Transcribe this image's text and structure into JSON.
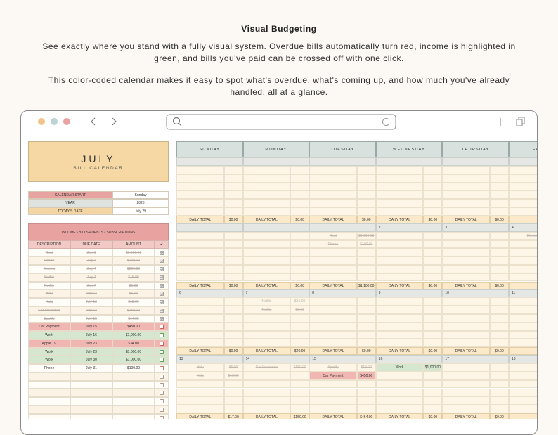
{
  "header": {
    "title": "Visual Budgeting",
    "paragraphs": [
      "See exactly where you stand with a fully visual system. Overdue bills automatically turn red, income is highlighted in green, and bills you've paid can be crossed off with one click.",
      "This color-coded calendar makes it easy to spot what's overdue, what's coming up, and how much you've already handled, all at a glance."
    ]
  },
  "sheet": {
    "title": {
      "month": "JULY",
      "subtitle": "BILL CALENDAR"
    },
    "settings": [
      {
        "label": "CALENDAR START",
        "value": "Sunday"
      },
      {
        "label": "YEAR",
        "value": "2025"
      },
      {
        "label": "TODAY'S DATE",
        "value": "July 29"
      }
    ],
    "bills": {
      "title": "INCOME • BILLS • DEBTS • SUBSCRIPTIONS",
      "columns": [
        "DESCRIPTION",
        "DUE DATE",
        "AMOUNT",
        "✔"
      ],
      "rows": [
        {
          "description": "Rent",
          "due": "July 1",
          "amount": "$1,000.00",
          "status": "paid"
        },
        {
          "description": "Phone",
          "due": "July 1",
          "amount": "$100.00",
          "status": "paid"
        },
        {
          "description": "Electric",
          "due": "July 4",
          "amount": "$200.00",
          "status": "paid"
        },
        {
          "description": "Netflix",
          "due": "July 7",
          "amount": "$15.00",
          "status": "paid"
        },
        {
          "description": "Netflix",
          "due": "July 7",
          "amount": "$5.00",
          "status": "paid"
        },
        {
          "description": "Hulu",
          "due": "July 13",
          "amount": "$5.00",
          "status": "paid"
        },
        {
          "description": "Hulu",
          "due": "July 13",
          "amount": "$12.00",
          "status": "paid"
        },
        {
          "description": "Car Insurance",
          "due": "July 14",
          "amount": "$150.00",
          "status": "paid"
        },
        {
          "description": "Spotify",
          "due": "July 15",
          "amount": "$14.00",
          "status": "paid"
        },
        {
          "description": "Car Payment",
          "due": "July 15",
          "amount": "$450.00",
          "status": "overdue"
        },
        {
          "description": "Work",
          "due": "July 16",
          "amount": "$1,000.00",
          "status": "income"
        },
        {
          "description": "Apple TV",
          "due": "July 23",
          "amount": "$34.00",
          "status": "overdue"
        },
        {
          "description": "Work",
          "due": "July 23",
          "amount": "$1,000.00",
          "status": "income"
        },
        {
          "description": "Work",
          "due": "July 30",
          "amount": "$1,000.00",
          "status": "income"
        },
        {
          "description": "Phone",
          "due": "July 31",
          "amount": "$100.00",
          "status": "upcoming"
        }
      ]
    },
    "calendar": {
      "days": [
        "SUNDAY",
        "MONDAY",
        "TUESDAY",
        "WEDNESDAY",
        "THURSDAY",
        "FRIDAY"
      ],
      "total_label": "DAILY TOTAL",
      "weeks": [
        {
          "cells": [
            {
              "items": [],
              "total": "$0.00"
            },
            {
              "items": [],
              "total": "$0.00"
            },
            {
              "items": [],
              "total": "$0.00"
            },
            {
              "items": [],
              "total": "$0.00"
            },
            {
              "items": [],
              "total": "$0.00"
            },
            {
              "items": []
            }
          ]
        },
        {
          "cells": [
            {
              "items": [],
              "total": "$0.00"
            },
            {
              "items": [],
              "total": "$0.00"
            },
            {
              "date": "1",
              "items": [
                {
                  "name": "Rent",
                  "amount": "$1,000.00",
                  "status": "paid"
                },
                {
                  "name": "Phone",
                  "amount": "$100.00",
                  "status": "paid"
                }
              ],
              "total": "$1,100.00"
            },
            {
              "date": "2",
              "items": [],
              "total": "$0.00"
            },
            {
              "date": "3",
              "items": [],
              "total": "$0.00"
            },
            {
              "date": "4",
              "items": [
                {
                  "name": "Electric",
                  "status": "paid"
                }
              ]
            }
          ]
        },
        {
          "cells": [
            {
              "date": "6",
              "items": [],
              "total": "$0.00"
            },
            {
              "date": "7",
              "items": [
                {
                  "name": "Netflix",
                  "amount": "$15.00",
                  "status": "paid"
                },
                {
                  "name": "Netflix",
                  "amount": "$5.00",
                  "status": "paid"
                }
              ],
              "total": "$20.00"
            },
            {
              "date": "8",
              "items": [],
              "total": "$0.00"
            },
            {
              "date": "9",
              "items": [],
              "total": "$0.00"
            },
            {
              "date": "10",
              "items": [],
              "total": "$0.00"
            },
            {
              "date": "11",
              "items": []
            }
          ]
        },
        {
          "cells": [
            {
              "date": "13",
              "items": [
                {
                  "name": "Hulu",
                  "amount": "$5.00",
                  "status": "paid"
                },
                {
                  "name": "Hulu",
                  "amount": "$12.00",
                  "status": "paid"
                }
              ],
              "total": "$17.00"
            },
            {
              "date": "14",
              "items": [
                {
                  "name": "Car Insurance",
                  "amount": "$150.00",
                  "status": "paid"
                }
              ],
              "total": "$150.00"
            },
            {
              "date": "15",
              "items": [
                {
                  "name": "Spotify",
                  "amount": "$14.00",
                  "status": "paid"
                },
                {
                  "name": "Car Payment",
                  "amount": "$450.00",
                  "status": "overdue"
                }
              ],
              "total": "$464.00"
            },
            {
              "date": "16",
              "items": [
                {
                  "name": "Work",
                  "amount": "$1,000.00",
                  "status": "income"
                }
              ],
              "total": "$0.00"
            },
            {
              "date": "17",
              "items": [],
              "total": "$0.00"
            },
            {
              "date": "18",
              "items": []
            }
          ]
        }
      ]
    }
  }
}
